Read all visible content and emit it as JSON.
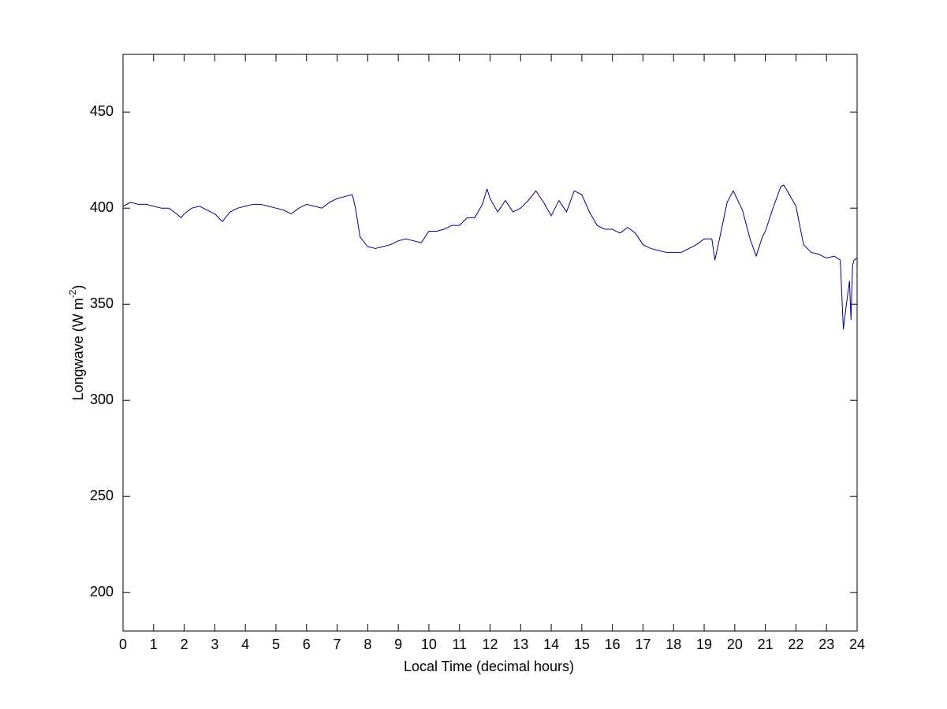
{
  "chart_data": {
    "type": "line",
    "xlabel": "Local Time (decimal hours)",
    "ylabel": "Longwave (W m",
    "ylabel_superscript": "-2",
    "ylabel_suffix": ")",
    "xlim": [
      0,
      24
    ],
    "ylim": [
      180,
      480
    ],
    "xticks": [
      0,
      1,
      2,
      3,
      4,
      5,
      6,
      7,
      8,
      9,
      10,
      11,
      12,
      13,
      14,
      15,
      16,
      17,
      18,
      19,
      20,
      21,
      22,
      23,
      24
    ],
    "yticks": [
      200,
      250,
      300,
      350,
      400,
      450
    ],
    "grid": false,
    "series": [
      {
        "color": "#000080",
        "x": [
          0,
          0.25,
          0.5,
          0.75,
          1,
          1.25,
          1.5,
          1.75,
          1.9,
          2,
          2.25,
          2.5,
          2.75,
          3,
          3.25,
          3.5,
          3.75,
          4,
          4.25,
          4.5,
          4.75,
          5,
          5.25,
          5.5,
          5.75,
          6,
          6.25,
          6.5,
          6.75,
          7,
          7.25,
          7.5,
          7.6,
          7.75,
          8,
          8.25,
          8.5,
          8.75,
          9,
          9.25,
          9.5,
          9.75,
          10,
          10.25,
          10.5,
          10.75,
          11,
          11.25,
          11.5,
          11.75,
          11.9,
          12,
          12.25,
          12.5,
          12.75,
          13,
          13.25,
          13.5,
          13.75,
          14,
          14.25,
          14.5,
          14.75,
          15,
          15.25,
          15.5,
          15.75,
          16,
          16.25,
          16.5,
          16.75,
          17,
          17.25,
          17.5,
          17.75,
          18,
          18.25,
          18.5,
          18.75,
          19,
          19.25,
          19.35,
          19.5,
          19.75,
          19.95,
          20.25,
          20.5,
          20.7,
          20.9,
          21,
          21.25,
          21.5,
          21.6,
          21.75,
          22,
          22.25,
          22.5,
          22.75,
          23,
          23.25,
          23.45,
          23.55,
          23.65,
          23.75,
          23.8,
          23.85,
          23.9,
          24
        ],
        "values": [
          401,
          403,
          402,
          402,
          401,
          400,
          400,
          397,
          395,
          397,
          400,
          401,
          399,
          397,
          393,
          398,
          400,
          401,
          402,
          402,
          401,
          400,
          399,
          397,
          400,
          402,
          401,
          400,
          403,
          405,
          406,
          407,
          400,
          385,
          380,
          379,
          380,
          381,
          383,
          384,
          383,
          382,
          388,
          388,
          389,
          391,
          391,
          395,
          395,
          402,
          410,
          405,
          398,
          404,
          398,
          400,
          404,
          409,
          403,
          396,
          404,
          398,
          409,
          407,
          398,
          391,
          389,
          389,
          387,
          390,
          387,
          381,
          379,
          378,
          377,
          377,
          377,
          379,
          381,
          384,
          384,
          373,
          384,
          403,
          409,
          399,
          384,
          375,
          385,
          388,
          400,
          411,
          412,
          408,
          401,
          381,
          377,
          376,
          374,
          375,
          373,
          337,
          350,
          362,
          342,
          370,
          373,
          374
        ]
      }
    ]
  }
}
